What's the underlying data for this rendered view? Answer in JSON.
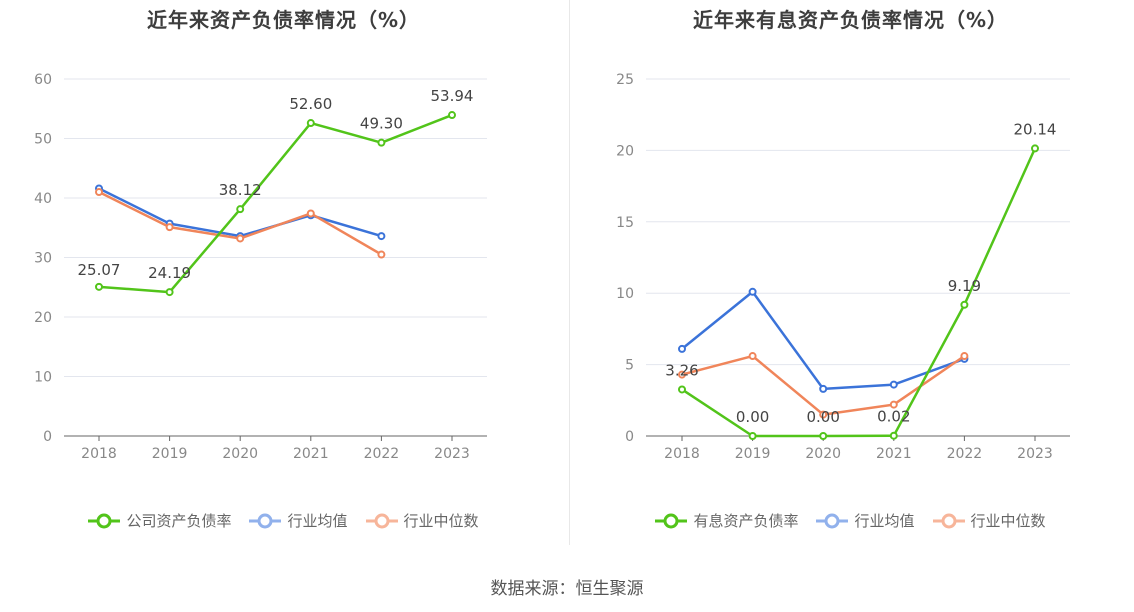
{
  "source": "数据来源：恒生聚源",
  "chart_data": [
    {
      "type": "line",
      "title": "近年来资产负债率情况（%）",
      "x": [
        "2018",
        "2019",
        "2020",
        "2021",
        "2022",
        "2023"
      ],
      "ylim": [
        0,
        60
      ],
      "yticks": [
        0,
        10,
        20,
        30,
        40,
        50,
        60
      ],
      "grid": true,
      "legend_position": "bottom",
      "series": [
        {
          "name": "公司资产负债率",
          "color": "#52c41a",
          "values": [
            25.07,
            24.19,
            38.12,
            52.6,
            49.3,
            53.94
          ],
          "labels": [
            "25.07",
            "24.19",
            "38.12",
            "52.60",
            "49.30",
            "53.94"
          ]
        },
        {
          "name": "行业均值",
          "color": "#3b73d9",
          "values": [
            41.6,
            35.7,
            33.6,
            37.1,
            33.6,
            null
          ]
        },
        {
          "name": "行业中位数",
          "color": "#f0855a",
          "values": [
            41.0,
            35.1,
            33.2,
            37.4,
            30.5,
            null
          ]
        }
      ]
    },
    {
      "type": "line",
      "title": "近年来有息资产负债率情况（%）",
      "x": [
        "2018",
        "2019",
        "2020",
        "2021",
        "2022",
        "2023"
      ],
      "ylim": [
        0,
        25
      ],
      "yticks": [
        0,
        5,
        10,
        15,
        20,
        25
      ],
      "grid": true,
      "legend_position": "bottom",
      "series": [
        {
          "name": "有息资产负债率",
          "color": "#52c41a",
          "values": [
            3.26,
            0.0,
            0.0,
            0.02,
            9.19,
            20.14
          ],
          "labels": [
            "3.26",
            "0.00",
            "0.00",
            "0.02",
            "9.19",
            "20.14"
          ]
        },
        {
          "name": "行业均值",
          "color": "#3b73d9",
          "values": [
            6.1,
            10.1,
            3.3,
            3.6,
            5.4,
            null
          ]
        },
        {
          "name": "行业中位数",
          "color": "#f0855a",
          "values": [
            4.3,
            5.6,
            1.5,
            2.2,
            5.6,
            null
          ]
        }
      ]
    }
  ]
}
